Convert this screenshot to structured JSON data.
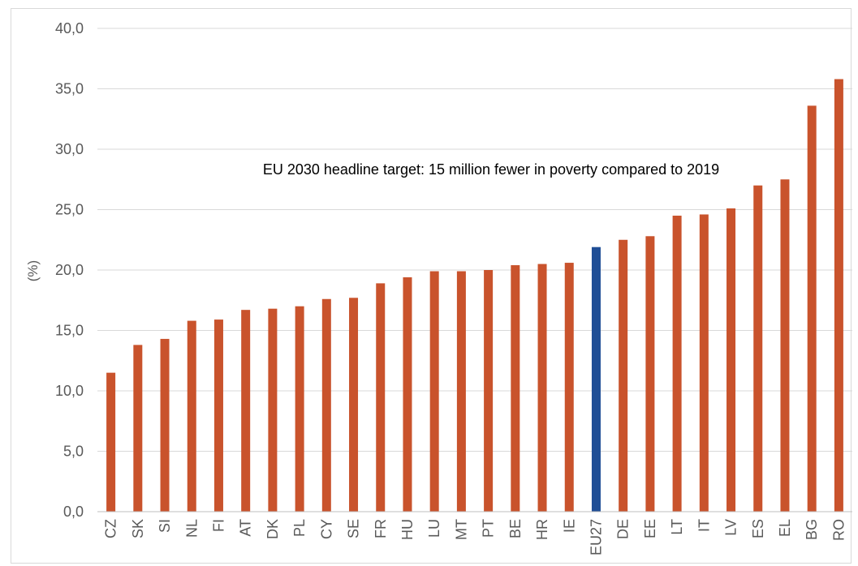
{
  "chart_data": {
    "type": "bar",
    "ylabel": "(%)",
    "ylim": [
      0,
      40
    ],
    "yticks": [
      "0,0",
      "5,0",
      "10,0",
      "15,0",
      "20,0",
      "25,0",
      "30,0",
      "35,0",
      "40,0"
    ],
    "grid": true,
    "annotation": "EU 2030 headline target: 15 million fewer in poverty compared to 2019",
    "categories": [
      "CZ",
      "SK",
      "SI",
      "NL",
      "FI",
      "AT",
      "DK",
      "PL",
      "CY",
      "SE",
      "FR",
      "HU",
      "LU",
      "MT",
      "PT",
      "BE",
      "HR",
      "IE",
      "EU27",
      "DE",
      "EE",
      "LT",
      "IT",
      "LV",
      "ES",
      "EL",
      "BG",
      "RO"
    ],
    "values": [
      11.5,
      13.8,
      14.3,
      15.8,
      15.9,
      16.7,
      16.8,
      17.0,
      17.6,
      17.7,
      18.9,
      19.4,
      19.9,
      19.9,
      20.0,
      20.4,
      20.5,
      20.6,
      21.9,
      22.5,
      22.8,
      24.5,
      24.6,
      25.1,
      27.0,
      27.5,
      33.6,
      35.8
    ],
    "bar_color": "#C9532C",
    "highlight_color": "#1F4E96",
    "highlight_category": "EU27",
    "gridline_color": "#d9d9d9",
    "axis_color": "#bfbfbf"
  }
}
